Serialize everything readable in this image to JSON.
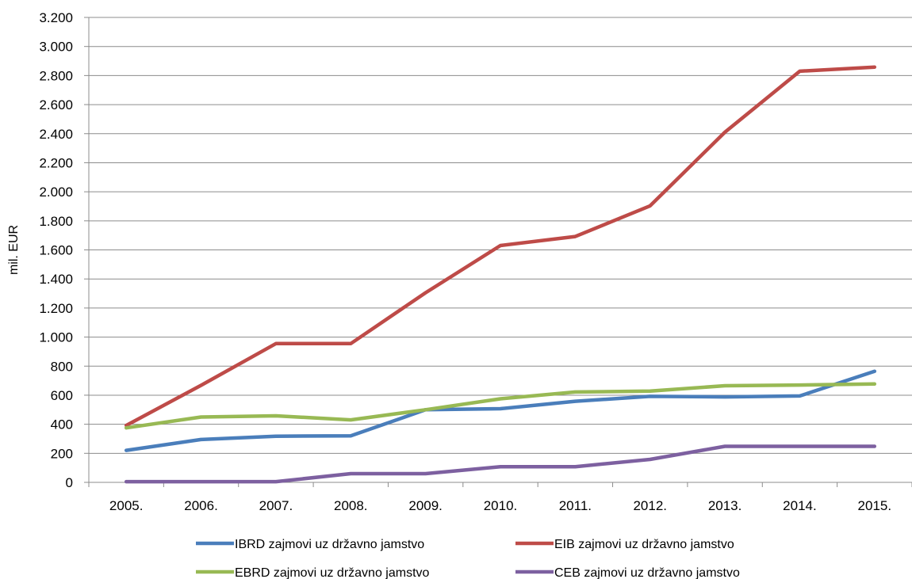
{
  "chart_data": {
    "type": "line",
    "title": "",
    "xlabel": "",
    "ylabel": "mil. EUR",
    "ylim": [
      0,
      3200
    ],
    "yticks": [
      0,
      200,
      400,
      600,
      800,
      1000,
      1200,
      1400,
      1600,
      1800,
      2000,
      2200,
      2400,
      2600,
      2800,
      3000,
      3200
    ],
    "ytick_labels": [
      "0",
      "200",
      "400",
      "600",
      "800",
      "1.000",
      "1.200",
      "1.400",
      "1.600",
      "1.800",
      "2.000",
      "2.200",
      "2.400",
      "2.600",
      "2.800",
      "3.000",
      "3.200"
    ],
    "categories": [
      "2005.",
      "2006.",
      "2007.",
      "2008.",
      "2009.",
      "2010.",
      "2011.",
      "2012.",
      "2013.",
      "2014.",
      "2015."
    ],
    "grid": "horizontal",
    "legend_position": "bottom",
    "series": [
      {
        "name": "IBRD zajmovi uz državno jamstvo",
        "color": "#4a7ebb",
        "values": [
          220,
          295,
          318,
          320,
          500,
          507,
          558,
          592,
          588,
          595,
          765
        ]
      },
      {
        "name": "EIB zajmovi uz državno jamstvo",
        "color": "#be4b48",
        "values": [
          392,
          668,
          955,
          955,
          1305,
          1630,
          1692,
          1903,
          2410,
          2830,
          2858
        ]
      },
      {
        "name": "EBRD zajmovi uz državno jamstvo",
        "color": "#98b954",
        "values": [
          375,
          450,
          458,
          430,
          500,
          575,
          622,
          628,
          665,
          670,
          677
        ]
      },
      {
        "name": "CEB zajmovi uz državno jamstvo",
        "color": "#7d60a0",
        "values": [
          5,
          5,
          5,
          60,
          60,
          108,
          108,
          158,
          248,
          248,
          248
        ]
      }
    ]
  }
}
